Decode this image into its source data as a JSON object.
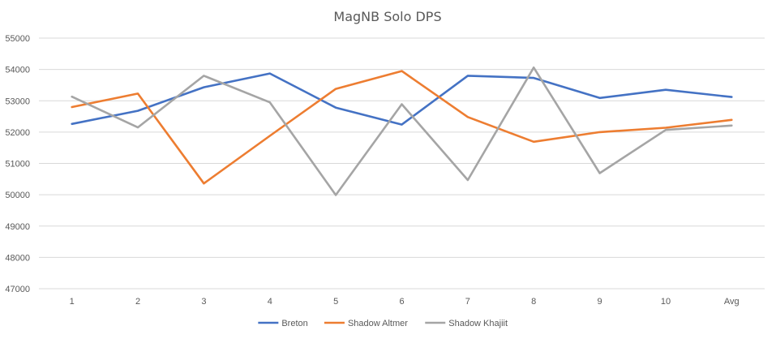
{
  "chart_data": {
    "type": "line",
    "title": "MagNB Solo DPS",
    "xlabel": "",
    "ylabel": "",
    "categories": [
      "1",
      "2",
      "3",
      "4",
      "5",
      "6",
      "7",
      "8",
      "9",
      "10",
      "Avg"
    ],
    "ylim": [
      47000,
      55000
    ],
    "ytick_step": 1000,
    "grid": true,
    "legend_position": "bottom",
    "series": [
      {
        "name": "Breton",
        "color": "#4472C4",
        "values": [
          52260,
          52680,
          53430,
          53870,
          52780,
          52240,
          53800,
          53730,
          53090,
          53350,
          53120
        ]
      },
      {
        "name": "Shadow Altmer",
        "color": "#ED7D31",
        "values": [
          52800,
          53230,
          50360,
          51880,
          53380,
          53950,
          52480,
          51690,
          52000,
          52140,
          52390
        ]
      },
      {
        "name": "Shadow Khajiit",
        "color": "#A5A5A5",
        "values": [
          53130,
          52150,
          53800,
          52950,
          49990,
          52890,
          50470,
          54060,
          50690,
          52070,
          52210
        ]
      }
    ]
  }
}
